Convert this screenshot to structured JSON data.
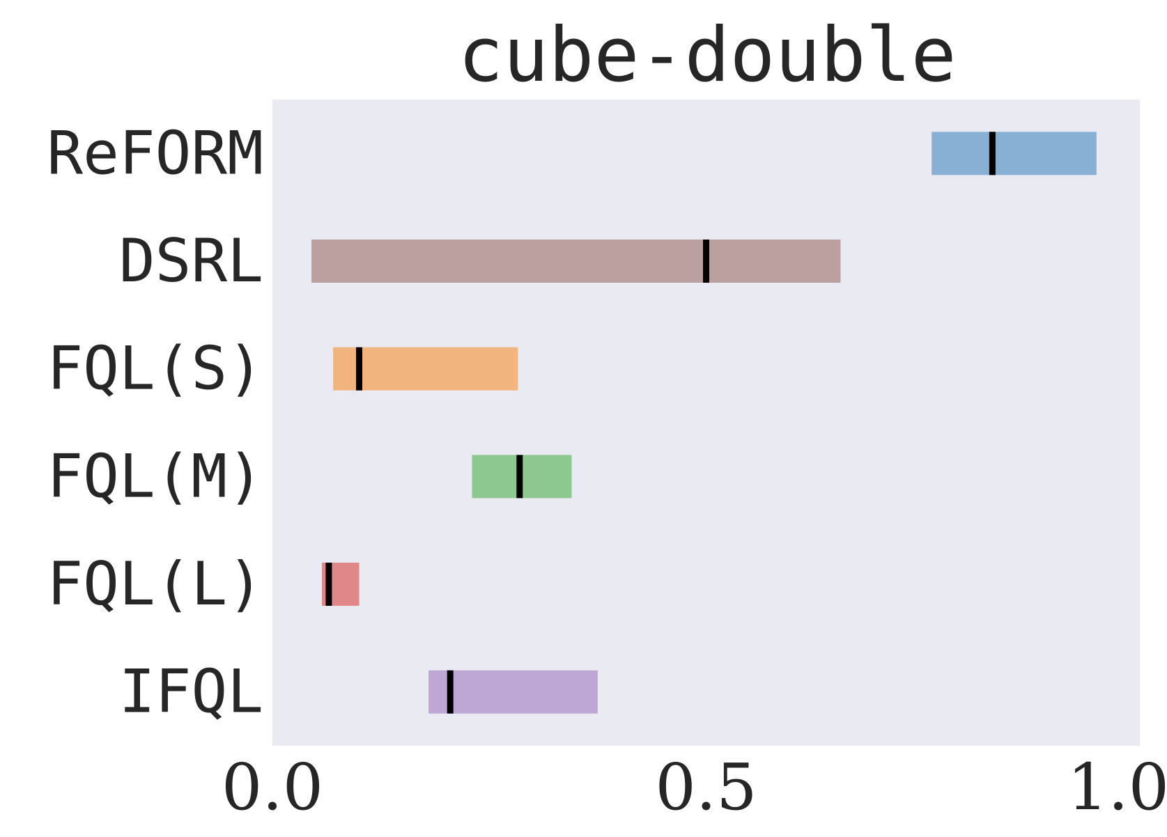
{
  "chart_data": {
    "type": "bar",
    "title": "cube-double",
    "xlim": [
      0.0,
      1.0
    ],
    "xticks": [
      "0.0",
      "0.5",
      "1.0"
    ],
    "grid": false,
    "categories": [
      "ReFORM",
      "DSRL",
      "FQL(S)",
      "FQL(M)",
      "FQL(L)",
      "IFQL"
    ],
    "ranges": [
      {
        "name": "ReFORM",
        "low": 0.76,
        "high": 0.95,
        "mid": 0.83,
        "color": "#87b0d4"
      },
      {
        "name": "DSRL",
        "low": 0.045,
        "high": 0.655,
        "mid": 0.5,
        "color": "#bca0a0"
      },
      {
        "name": "FQL(S)",
        "low": 0.07,
        "high": 0.283,
        "mid": 0.1,
        "color": "#f2b47f"
      },
      {
        "name": "FQL(M)",
        "low": 0.23,
        "high": 0.345,
        "mid": 0.285,
        "color": "#8dc891"
      },
      {
        "name": "FQL(L)",
        "low": 0.057,
        "high": 0.1,
        "mid": 0.065,
        "color": "#e0878a"
      },
      {
        "name": "IFQL",
        "low": 0.18,
        "high": 0.375,
        "mid": 0.205,
        "color": "#bea6d5"
      }
    ],
    "background_color": "#eaeaf2",
    "marker_color": "#000000"
  }
}
